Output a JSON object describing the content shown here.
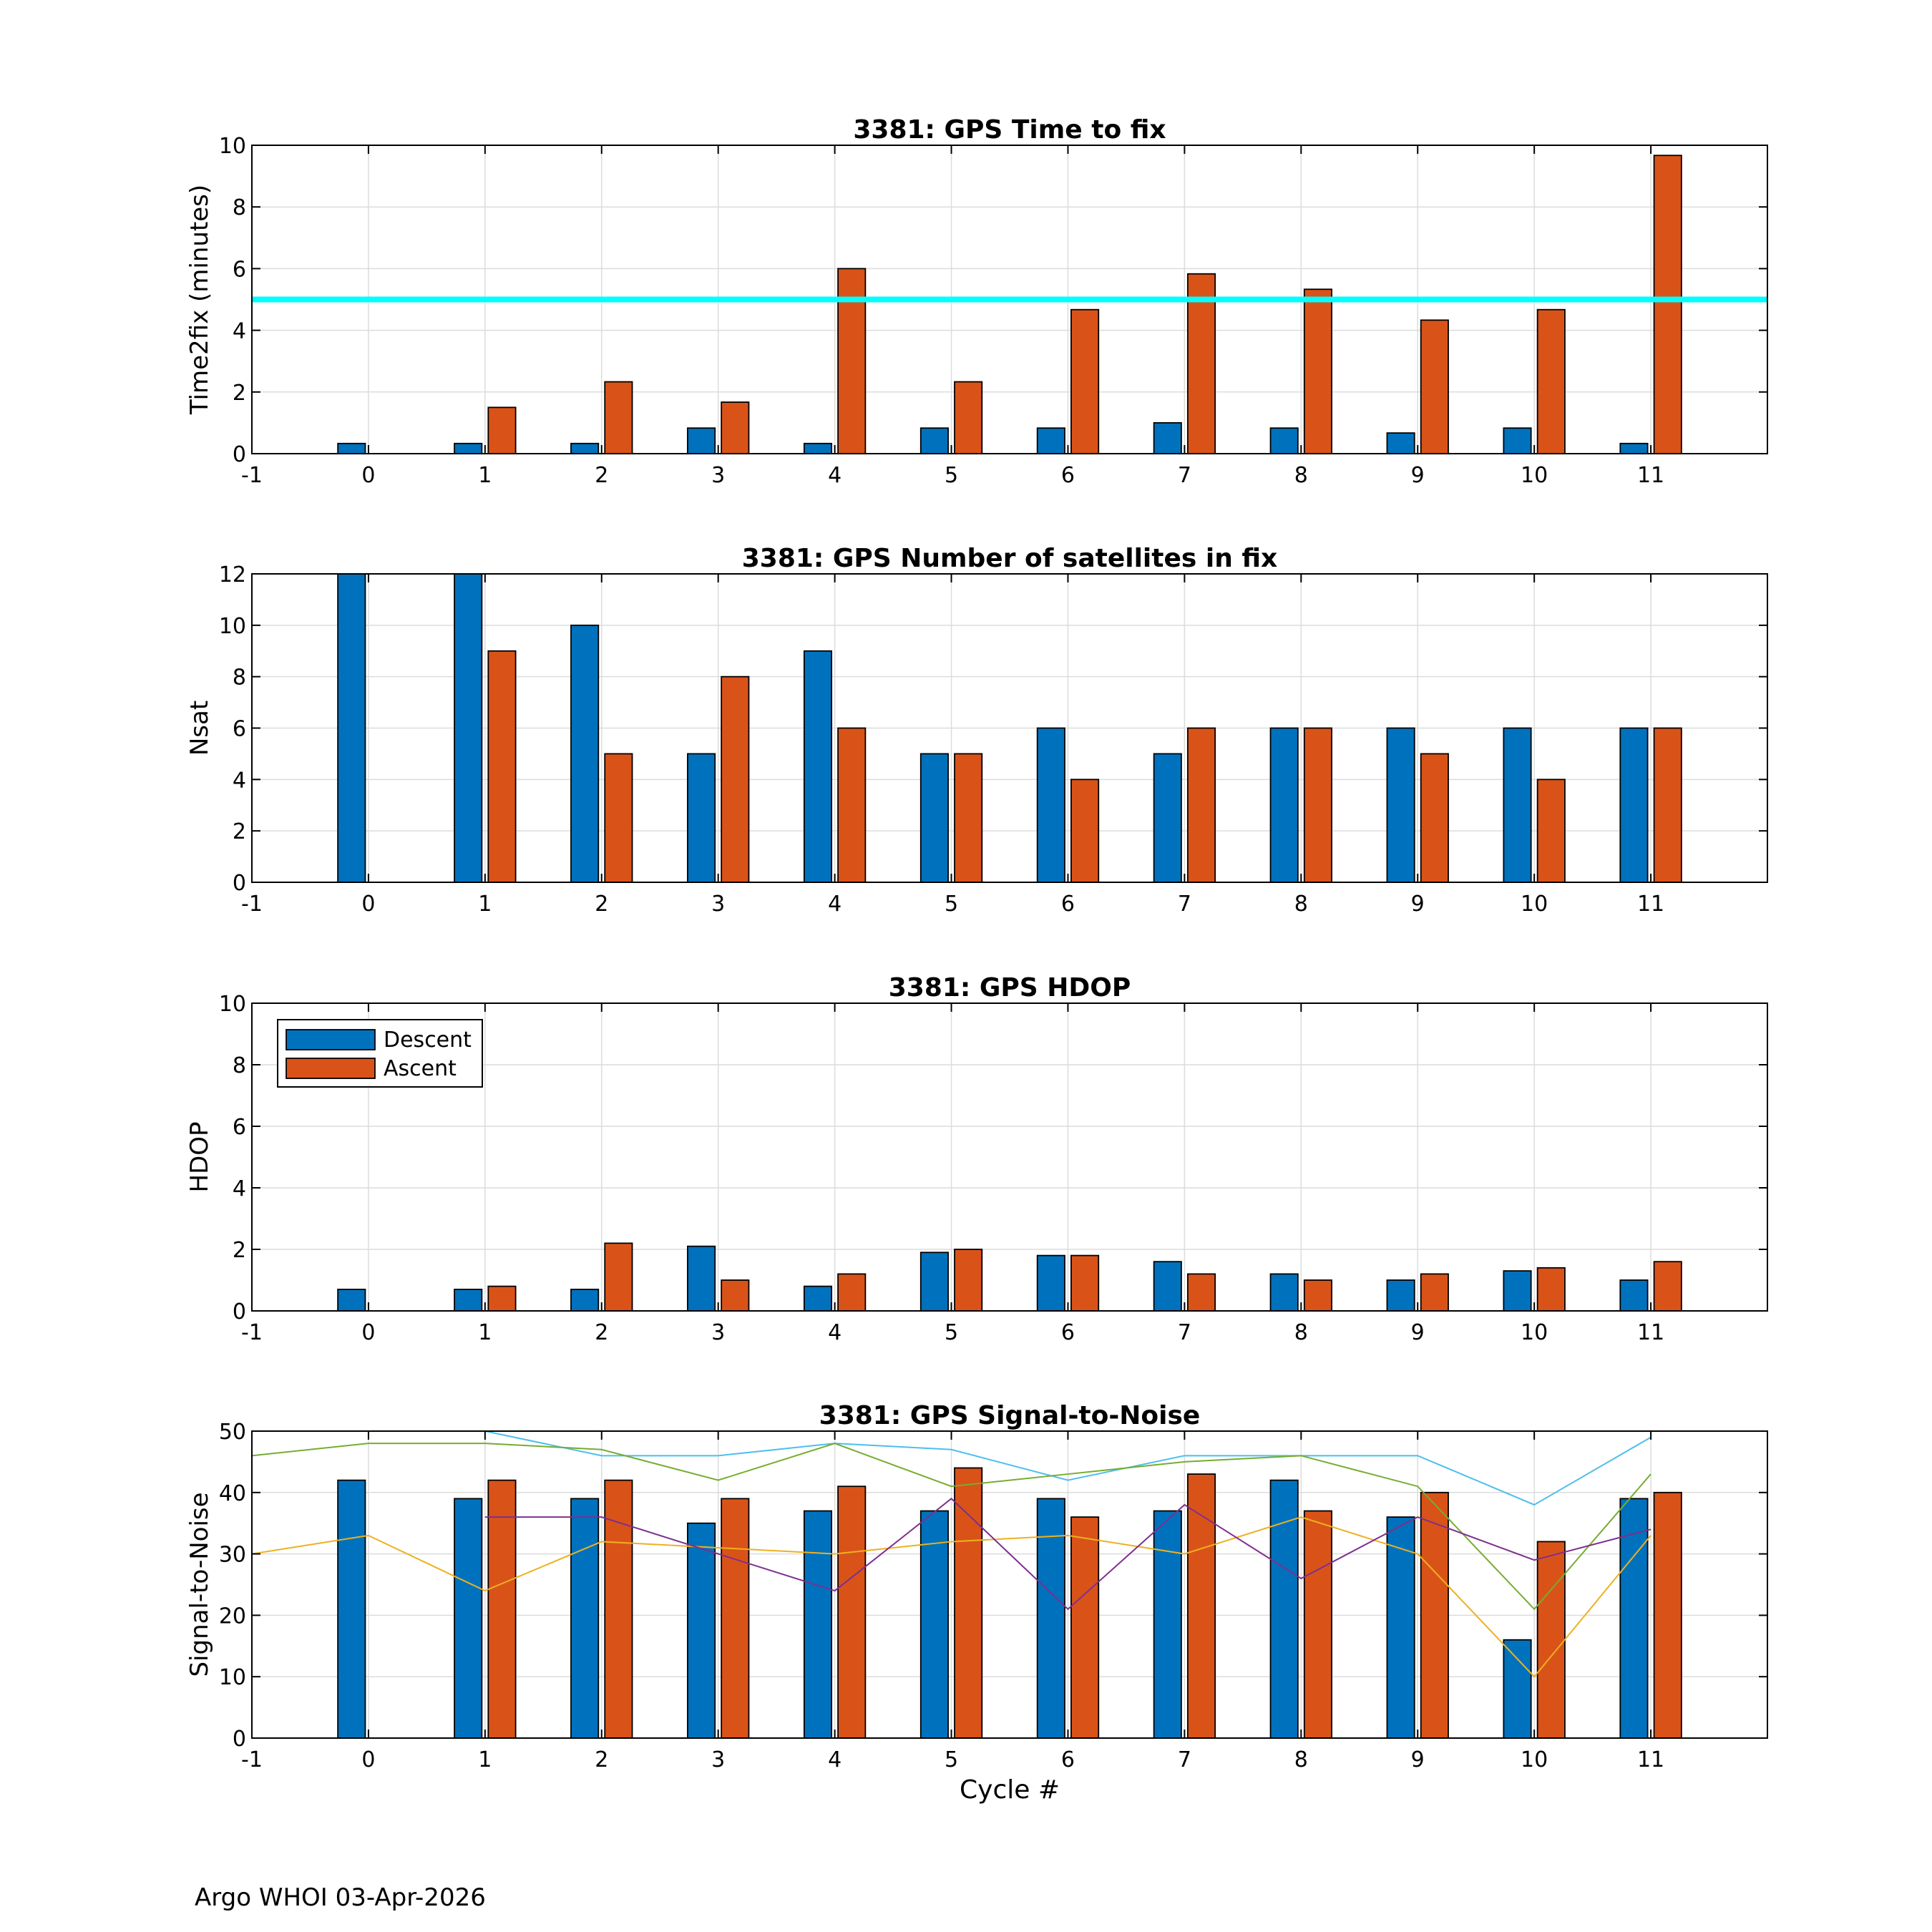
{
  "colors": {
    "descent": "#0072BD",
    "ascent": "#D95319",
    "threshold": "#00FFFF",
    "snr_lines": [
      "#4DBEEE",
      "#77AC30",
      "#EDB120",
      "#7E2F8E"
    ],
    "grid": "#dcdcdc",
    "axis": "#000000"
  },
  "footer": {
    "text": "Argo WHOI 03-Apr-2026"
  },
  "chart_data": [
    {
      "id": "time2fix",
      "type": "bar",
      "title": "3381: GPS Time to fix",
      "xlabel": "",
      "ylabel": "Time2fix (minutes)",
      "xlim": [
        -1,
        12
      ],
      "ylim": [
        0,
        10
      ],
      "xticks": [
        -1,
        0,
        1,
        2,
        3,
        4,
        5,
        6,
        7,
        8,
        9,
        10,
        11
      ],
      "yticks": [
        0,
        2,
        4,
        6,
        8,
        10
      ],
      "grid": true,
      "x": [
        0,
        1,
        2,
        3,
        4,
        5,
        6,
        7,
        8,
        9,
        10,
        11
      ],
      "series": [
        {
          "name": "Descent",
          "color": "#0072BD",
          "values": [
            0.33,
            0.33,
            0.33,
            0.83,
            0.33,
            0.83,
            0.83,
            1.0,
            0.83,
            0.67,
            0.83,
            0.33
          ]
        },
        {
          "name": "Ascent",
          "color": "#D95319",
          "values": [
            null,
            1.5,
            2.33,
            1.67,
            6.0,
            2.33,
            4.67,
            5.83,
            5.33,
            4.33,
            4.67,
            9.67
          ]
        }
      ],
      "hline": {
        "value": 5,
        "color": "#00FFFF"
      }
    },
    {
      "id": "nsat",
      "type": "bar",
      "title": "3381: GPS Number of satellites in fix",
      "xlabel": "",
      "ylabel": "Nsat",
      "xlim": [
        -1,
        12
      ],
      "ylim": [
        0,
        12
      ],
      "xticks": [
        -1,
        0,
        1,
        2,
        3,
        4,
        5,
        6,
        7,
        8,
        9,
        10,
        11
      ],
      "yticks": [
        0,
        2,
        4,
        6,
        8,
        10,
        12
      ],
      "grid": true,
      "x": [
        0,
        1,
        2,
        3,
        4,
        5,
        6,
        7,
        8,
        9,
        10,
        11
      ],
      "series": [
        {
          "name": "Descent",
          "color": "#0072BD",
          "values": [
            12,
            12,
            10,
            5,
            9,
            5,
            6,
            5,
            6,
            6,
            6,
            6
          ]
        },
        {
          "name": "Ascent",
          "color": "#D95319",
          "values": [
            null,
            9,
            5,
            8,
            6,
            5,
            4,
            6,
            6,
            5,
            4,
            6
          ]
        }
      ]
    },
    {
      "id": "hdop",
      "type": "bar",
      "title": "3381: GPS HDOP",
      "xlabel": "",
      "ylabel": "HDOP",
      "xlim": [
        -1,
        12
      ],
      "ylim": [
        0,
        10
      ],
      "xticks": [
        -1,
        0,
        1,
        2,
        3,
        4,
        5,
        6,
        7,
        8,
        9,
        10,
        11
      ],
      "yticks": [
        0,
        2,
        4,
        6,
        8,
        10
      ],
      "grid": true,
      "legend": {
        "position": "top-left",
        "entries": [
          "Descent",
          "Ascent"
        ]
      },
      "x": [
        0,
        1,
        2,
        3,
        4,
        5,
        6,
        7,
        8,
        9,
        10,
        11
      ],
      "series": [
        {
          "name": "Descent",
          "color": "#0072BD",
          "values": [
            0.7,
            0.7,
            0.7,
            2.1,
            0.8,
            1.9,
            1.8,
            1.6,
            1.2,
            1.0,
            1.3,
            1.0
          ]
        },
        {
          "name": "Ascent",
          "color": "#D95319",
          "values": [
            null,
            0.8,
            2.2,
            1.0,
            1.2,
            2.0,
            1.8,
            1.2,
            1.0,
            1.2,
            1.4,
            1.6
          ]
        }
      ]
    },
    {
      "id": "snr",
      "type": "bar",
      "title": "3381: GPS Signal-to-Noise",
      "xlabel": "Cycle #",
      "ylabel": "Signal-to-Noise",
      "xlim": [
        -1,
        12
      ],
      "ylim": [
        0,
        50
      ],
      "xticks": [
        -1,
        0,
        1,
        2,
        3,
        4,
        5,
        6,
        7,
        8,
        9,
        10,
        11
      ],
      "yticks": [
        0,
        10,
        20,
        30,
        40,
        50
      ],
      "grid": true,
      "x": [
        0,
        1,
        2,
        3,
        4,
        5,
        6,
        7,
        8,
        9,
        10,
        11
      ],
      "series": [
        {
          "name": "Descent",
          "color": "#0072BD",
          "values": [
            42,
            39,
            39,
            35,
            37,
            37,
            39,
            37,
            42,
            36,
            16,
            39
          ]
        },
        {
          "name": "Ascent",
          "color": "#D95319",
          "values": [
            null,
            42,
            42,
            39,
            41,
            44,
            36,
            43,
            37,
            40,
            32,
            40
          ]
        }
      ],
      "lines": [
        {
          "color": "#4DBEEE",
          "x": [
            1,
            2,
            3,
            4,
            5,
            6,
            7,
            8,
            9,
            10,
            11
          ],
          "y": [
            50,
            46,
            46,
            48,
            47,
            42,
            46,
            46,
            46,
            38,
            49
          ]
        },
        {
          "color": "#77AC30",
          "x": [
            -1,
            0,
            1,
            2,
            3,
            4,
            5,
            6,
            7,
            8,
            9,
            10,
            11
          ],
          "y": [
            46,
            48,
            48,
            47,
            42,
            48,
            41,
            43,
            45,
            46,
            41,
            21,
            43
          ]
        },
        {
          "color": "#EDB120",
          "x": [
            -1,
            0,
            1,
            2,
            3,
            4,
            5,
            6,
            7,
            8,
            9,
            10,
            11
          ],
          "y": [
            30,
            33,
            24,
            32,
            31,
            30,
            32,
            33,
            30,
            36,
            30,
            10,
            33
          ]
        },
        {
          "color": "#7E2F8E",
          "x": [
            1,
            2,
            3,
            4,
            5,
            6,
            7,
            8,
            9,
            10,
            11
          ],
          "y": [
            36,
            36,
            30,
            24,
            39,
            21,
            38,
            26,
            36,
            29,
            34
          ]
        }
      ]
    }
  ]
}
